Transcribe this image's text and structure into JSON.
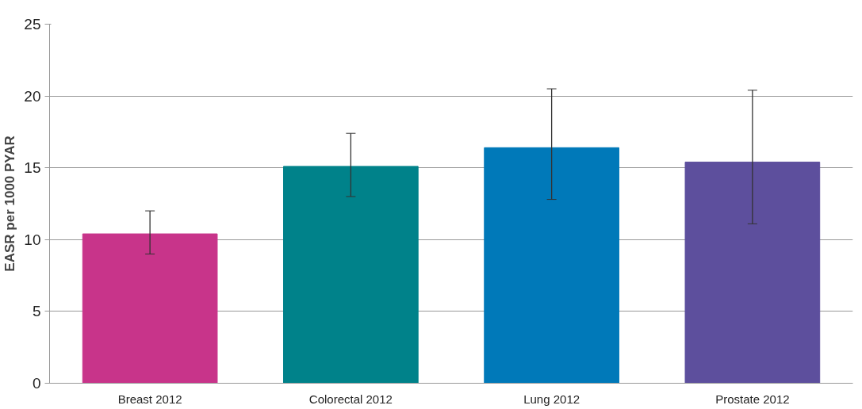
{
  "chart_data": {
    "type": "bar",
    "ylabel": "EASR per 1000 PYAR",
    "categories": [
      "Breast 2012",
      "Colorectal 2012",
      "Lung 2012",
      "Prostate 2012"
    ],
    "values": [
      10.4,
      15.1,
      16.4,
      15.4
    ],
    "colors": [
      "#c8348a",
      "#00828a",
      "#0079b9",
      "#5d4f9d"
    ],
    "errors": [
      [
        9.0,
        12.0
      ],
      [
        13.0,
        17.4
      ],
      [
        12.8,
        20.5
      ],
      [
        11.1,
        20.4
      ]
    ],
    "ylim": [
      0,
      25
    ],
    "yticks": [
      0,
      5,
      10,
      15,
      20,
      25
    ],
    "grid": "y"
  }
}
